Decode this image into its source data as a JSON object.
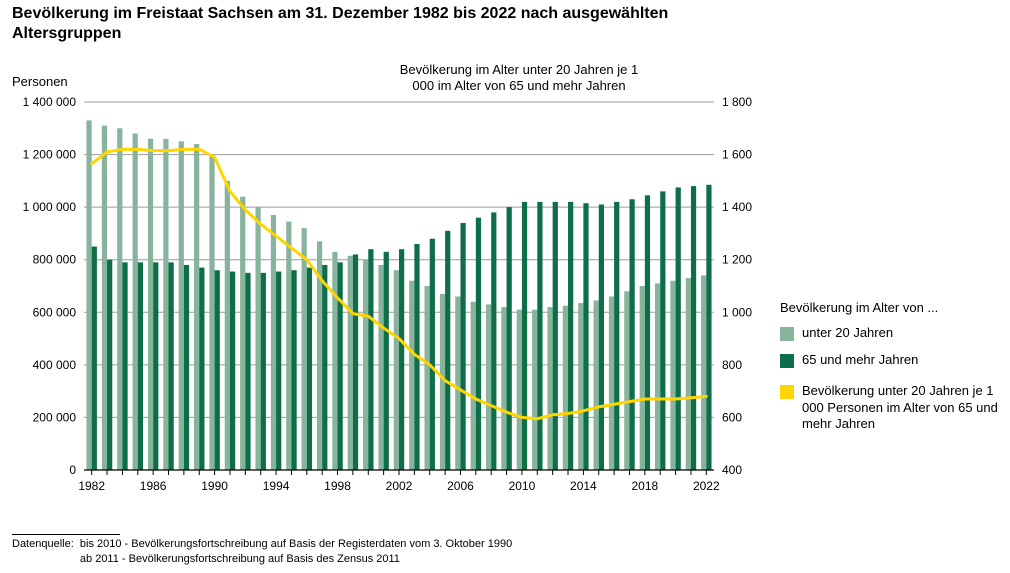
{
  "title": "Bevölkerung im Freistaat Sachsen am 31. Dezember 1982 bis 2022 nach ausgewählten Altersgruppen",
  "chart": {
    "type": "bar-line-dual-axis",
    "background": "#ffffff",
    "grid_color": "#9c9c9c",
    "axis_color": "#000000",
    "font_family": "Arial",
    "tick_fontsize": 12,
    "axis_title_fontsize": 13,
    "secondary_title_fontsize": 13,
    "years_start": 1982,
    "years_end": 2022,
    "x_tick_step": 4,
    "y_left": {
      "title": "Personen",
      "min": 0,
      "max": 1400000,
      "tick_step": 200000,
      "tick_format": "space-thousands"
    },
    "y_right": {
      "title": "Bevölkerung im Alter unter 20 Jahren je 1 000 im Alter von 65 und mehr Jahren",
      "min": 400,
      "max": 1800,
      "tick_step": 200,
      "tick_format": "space-thousands"
    },
    "bar_width": 0.34,
    "line_width": 3,
    "series_bars": [
      {
        "id": "under20",
        "label": "unter 20 Jahren",
        "color": "#88b39c",
        "axis": "left",
        "values": [
          1330000,
          1310000,
          1300000,
          1280000,
          1260000,
          1260000,
          1250000,
          1240000,
          1200000,
          1100000,
          1040000,
          1000000,
          970000,
          945000,
          920000,
          870000,
          830000,
          815000,
          800000,
          780000,
          760000,
          720000,
          700000,
          670000,
          660000,
          640000,
          630000,
          620000,
          610000,
          610000,
          620000,
          625000,
          635000,
          645000,
          660000,
          680000,
          700000,
          710000,
          720000,
          730000,
          740000
        ]
      },
      {
        "id": "over65",
        "label": "65 und mehr Jahren",
        "color": "#0e6e4a",
        "axis": "left",
        "values": [
          850000,
          800000,
          790000,
          790000,
          790000,
          790000,
          780000,
          770000,
          760000,
          755000,
          750000,
          750000,
          755000,
          760000,
          770000,
          780000,
          790000,
          820000,
          840000,
          830000,
          840000,
          860000,
          880000,
          910000,
          940000,
          960000,
          980000,
          1000000,
          1020000,
          1020000,
          1020000,
          1020000,
          1015000,
          1010000,
          1020000,
          1030000,
          1045000,
          1060000,
          1075000,
          1080000,
          1085000
        ]
      }
    ],
    "series_line": {
      "id": "ratio",
      "label": "Bevölkerung unter 20 Jahren je 1 000 Personen im Alter von 65 und mehr Jahren",
      "color": "#ffd500",
      "axis": "right",
      "values": [
        1565,
        1610,
        1620,
        1620,
        1615,
        1615,
        1620,
        1620,
        1590,
        1460,
        1390,
        1335,
        1290,
        1245,
        1200,
        1120,
        1055,
        995,
        985,
        940,
        900,
        840,
        800,
        740,
        705,
        670,
        645,
        620,
        600,
        595,
        610,
        615,
        625,
        640,
        650,
        660,
        670,
        670,
        670,
        675,
        680
      ]
    }
  },
  "legend": {
    "title": "Bevölkerung im Alter von ...",
    "items": [
      {
        "swatch": "#88b39c",
        "label": "unter 20 Jahren"
      },
      {
        "swatch": "#0e6e4a",
        "label": "65 und mehr Jahren"
      },
      {
        "swatch": "#ffd500",
        "label": "Bevölkerung unter 20 Jahren je 1 000 Personen im  Alter von 65 und mehr Jahren"
      }
    ]
  },
  "source": {
    "prefix": "Datenquelle:",
    "line1": "bis 2010 - Bevölkerungsfortschreibung  auf Basis der Registerdaten  vom 3. Oktober 1990",
    "line2": "ab 2011 - Bevölkerungsfortschreibung  auf Basis des Zensus  2011"
  }
}
